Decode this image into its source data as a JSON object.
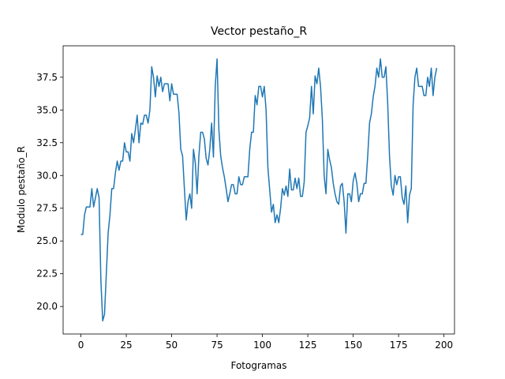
{
  "chart_data": {
    "type": "line",
    "title": "Vector pestaño_R",
    "x_label": "Fotogramas",
    "y_label": "Modulo pestaño_R",
    "x": [
      0,
      1,
      2,
      3,
      4,
      5,
      6,
      7,
      8,
      9,
      10,
      11,
      12,
      13,
      14,
      15,
      16,
      17,
      18,
      19,
      20,
      21,
      22,
      23,
      24,
      25,
      26,
      27,
      28,
      29,
      30,
      31,
      32,
      33,
      34,
      35,
      36,
      37,
      38,
      39,
      40,
      41,
      42,
      43,
      44,
      45,
      46,
      47,
      48,
      49,
      50,
      51,
      52,
      53,
      54,
      55,
      56,
      57,
      58,
      59,
      60,
      61,
      62,
      63,
      64,
      65,
      66,
      67,
      68,
      69,
      70,
      71,
      72,
      73,
      74,
      75,
      76,
      77,
      78,
      79,
      80,
      81,
      82,
      83,
      84,
      85,
      86,
      87,
      88,
      89,
      90,
      91,
      92,
      93,
      94,
      95,
      96,
      97,
      98,
      99,
      100,
      101,
      102,
      103,
      104,
      105,
      106,
      107,
      108,
      109,
      110,
      111,
      112,
      113,
      114,
      115,
      116,
      117,
      118,
      119,
      120,
      121,
      122,
      123,
      124,
      125,
      126,
      127,
      128,
      129,
      130,
      131,
      132,
      133,
      134,
      135,
      136,
      137,
      138,
      139,
      140,
      141,
      142,
      143,
      144,
      145,
      146,
      147,
      148,
      149,
      150,
      151,
      152,
      153,
      154,
      155,
      156,
      157,
      158,
      159,
      160,
      161,
      162,
      163,
      164,
      165,
      166,
      167,
      168,
      169,
      170,
      171,
      172,
      173,
      174,
      175,
      176,
      177,
      178,
      179,
      180,
      181,
      182,
      183,
      184,
      185,
      186,
      187,
      188,
      189,
      190,
      191,
      192,
      193,
      194,
      195,
      196
    ],
    "series": [
      {
        "color": "#1f77b4",
        "values": [
          25.5,
          25.5,
          27,
          27.6,
          27.6,
          27.6,
          29,
          27.6,
          28.3,
          29,
          28.3,
          22,
          18.9,
          19.4,
          22.5,
          25.6,
          27,
          29,
          29,
          30.2,
          31.1,
          30.4,
          31.1,
          31.1,
          32.5,
          31.8,
          31.8,
          31.1,
          33.2,
          32.5,
          33.5,
          34.6,
          32.5,
          34,
          33.9,
          34.6,
          34.6,
          34,
          35,
          38.3,
          37.5,
          36,
          37.6,
          36.8,
          37.5,
          36.4,
          37,
          37,
          37,
          35.7,
          37,
          36.2,
          36.2,
          36.2,
          34.8,
          32,
          31.5,
          29,
          26.6,
          28,
          28.6,
          27.5,
          32,
          31,
          28.6,
          31.5,
          33.3,
          33.3,
          32.8,
          31.3,
          30.8,
          32,
          34,
          31.4,
          36.8,
          38.9,
          33.5,
          31.5,
          30.6,
          29.9,
          29,
          28,
          28.6,
          29.3,
          29.3,
          28.6,
          28.6,
          29.9,
          29.3,
          29.3,
          29.9,
          29.9,
          29.9,
          32,
          33.3,
          33.3,
          36.1,
          35.4,
          36.8,
          36.8,
          36,
          36.8,
          35,
          30.6,
          28.9,
          27.2,
          27.8,
          26.4,
          27,
          26.4,
          27.5,
          29,
          28.5,
          29.2,
          28.4,
          30.5,
          28.9,
          28.9,
          29.8,
          29,
          29.8,
          28.4,
          28.4,
          29.5,
          33.3,
          33.8,
          34.4,
          36.8,
          34.7,
          37.6,
          37,
          38.2,
          36.8,
          34.3,
          30,
          28.6,
          32,
          31.2,
          30.6,
          29.4,
          28.6,
          28,
          27.8,
          29.2,
          29.4,
          28,
          25.6,
          28.6,
          28.6,
          28,
          29.6,
          30.2,
          29.4,
          28,
          28.6,
          28.6,
          29.4,
          29.4,
          31.5,
          34,
          34.7,
          36,
          36.8,
          38.2,
          37.5,
          38.9,
          37.5,
          37.5,
          38.3,
          35.5,
          31.5,
          29.2,
          28.5,
          30,
          29.3,
          29.9,
          29.9,
          28.3,
          27.8,
          29.2,
          26.4,
          28.5,
          29,
          35.4,
          37.5,
          38.2,
          36.8,
          36.8,
          36.8,
          36.1,
          36.1,
          37.5,
          36.8,
          38.2,
          36.1,
          37.5,
          38.2
        ]
      }
    ],
    "xlim": [
      -9.8,
      205.8
    ],
    "ylim": [
      17.9,
      39.9
    ],
    "xticks": [
      0,
      25,
      50,
      75,
      100,
      125,
      150,
      175,
      200
    ],
    "yticks": [
      {
        "value": 20,
        "label": "20.0"
      },
      {
        "value": 22.5,
        "label": "22.5"
      },
      {
        "value": 25,
        "label": "25.0"
      },
      {
        "value": 27.5,
        "label": "27.5"
      },
      {
        "value": 30,
        "label": "30.0"
      },
      {
        "value": 32.5,
        "label": "32.5"
      },
      {
        "value": 35,
        "label": "35.0"
      },
      {
        "value": 37.5,
        "label": "37.5"
      }
    ],
    "grid": false
  }
}
